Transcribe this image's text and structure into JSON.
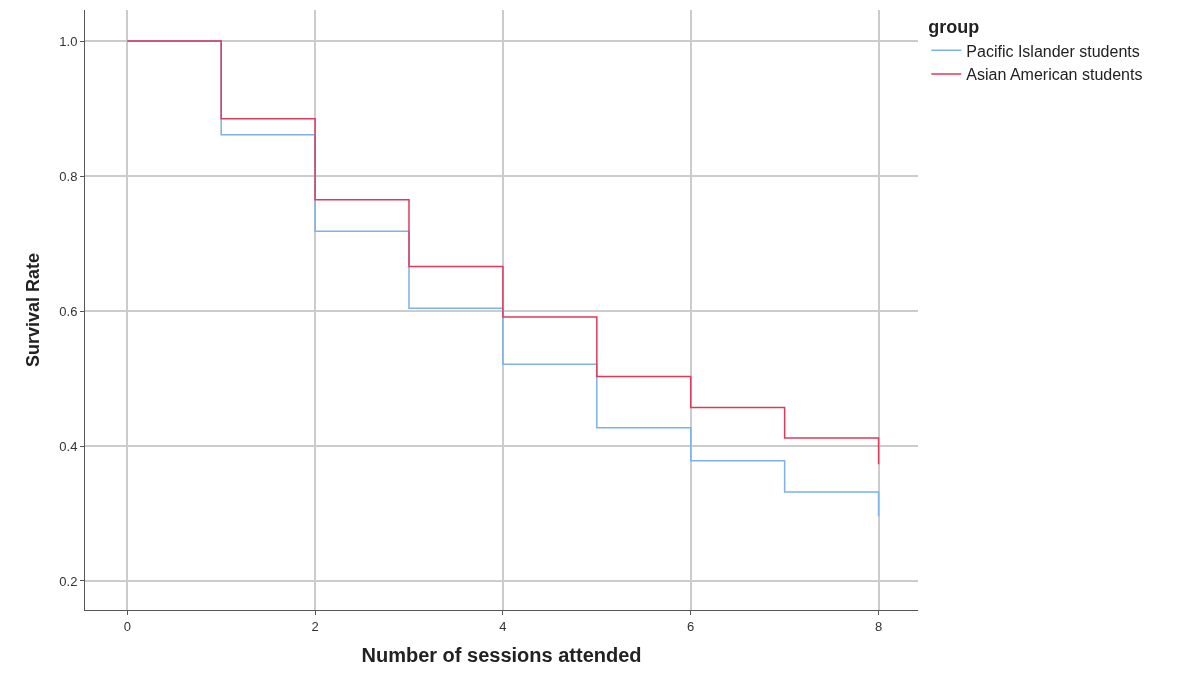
{
  "chart_data": {
    "type": "step",
    "xlabel": "Number of sessions attended",
    "ylabel": "Survival Rate",
    "legend_title": "group",
    "x": [
      0,
      1,
      2,
      3,
      4,
      5,
      6,
      7,
      8
    ],
    "series": [
      {
        "name": "Pacific Islander students",
        "color": "#7eb0ea",
        "values": [
          1.0,
          0.861,
          0.718,
          0.604,
          0.521,
          0.427,
          0.378,
          0.332,
          0.296
        ]
      },
      {
        "name": "Asian American students",
        "color": "#e03a5a",
        "values": [
          1.0,
          0.885,
          0.765,
          0.666,
          0.591,
          0.503,
          0.457,
          0.412,
          0.373
        ]
      }
    ],
    "xlim": [
      -0.45,
      8.42
    ],
    "xticks": [
      0,
      2,
      4,
      6,
      8
    ],
    "ylim": [
      0.157,
      1.046
    ],
    "yticks": [
      {
        "value": 0.2,
        "label": "0.2"
      },
      {
        "value": 0.4,
        "label": "0.4"
      },
      {
        "value": 0.6,
        "label": "0.6"
      },
      {
        "value": 0.8,
        "label": "0.8"
      },
      {
        "value": 1.0,
        "label": "1.0"
      }
    ],
    "grid": true,
    "legend": "top right",
    "marker": "none",
    "line_style": "solid"
  }
}
